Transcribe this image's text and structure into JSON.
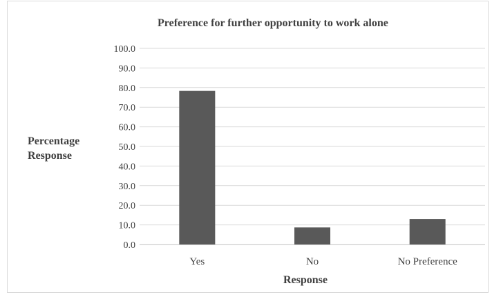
{
  "chart_data": {
    "type": "bar",
    "title": "Preference for further opportunity  to work alone",
    "xlabel": "Response",
    "ylabel_lines": [
      "Percentage",
      "Response"
    ],
    "categories": [
      "Yes",
      "No",
      "No Preference"
    ],
    "values": [
      78.3,
      8.7,
      13.0
    ],
    "ylim": [
      0,
      100
    ],
    "ytick_labels": [
      "0.0",
      "10.0",
      "20.0",
      "30.0",
      "40.0",
      "50.0",
      "60.0",
      "70.0",
      "80.0",
      "90.0",
      "100.0"
    ],
    "grid": true,
    "legend": "none",
    "bar_color": "#595959",
    "grid_color": "#d9d9d9",
    "text_color": "#404040"
  }
}
